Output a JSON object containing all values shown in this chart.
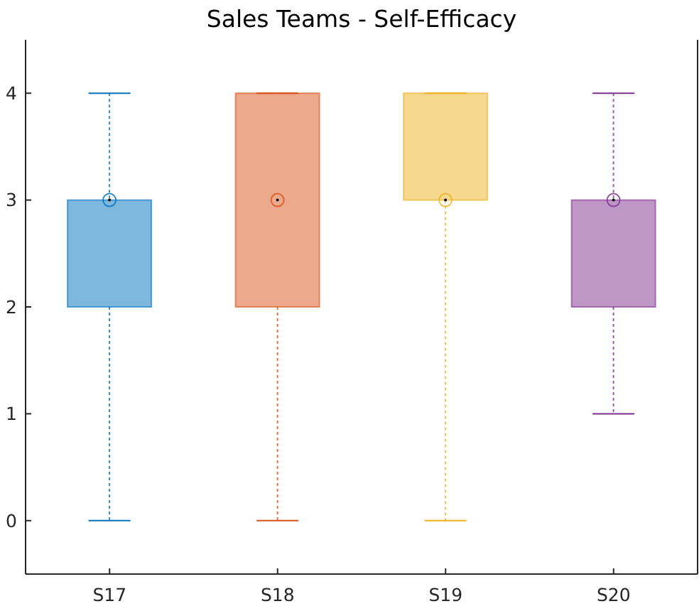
{
  "chart_data": {
    "type": "box",
    "title": "Sales Teams - Self-Efficacy",
    "categories": [
      "S17",
      "S18",
      "S19",
      "S20"
    ],
    "colors": [
      "#0072bd",
      "#d95319",
      "#edb120",
      "#7e2f8e"
    ],
    "boxes": [
      {
        "low": 0,
        "q1": 2,
        "median": 3,
        "q3": 3,
        "high": 4
      },
      {
        "low": 0,
        "q1": 2,
        "median": 3,
        "q3": 4,
        "high": 4
      },
      {
        "low": 0,
        "q1": 3,
        "median": 3,
        "q3": 4,
        "high": 4
      },
      {
        "low": 1,
        "q1": 2,
        "median": 3,
        "q3": 3,
        "high": 4
      }
    ],
    "ylim": [
      -0.5,
      4.5
    ],
    "yticks": [
      0,
      1,
      2,
      3,
      4
    ]
  }
}
